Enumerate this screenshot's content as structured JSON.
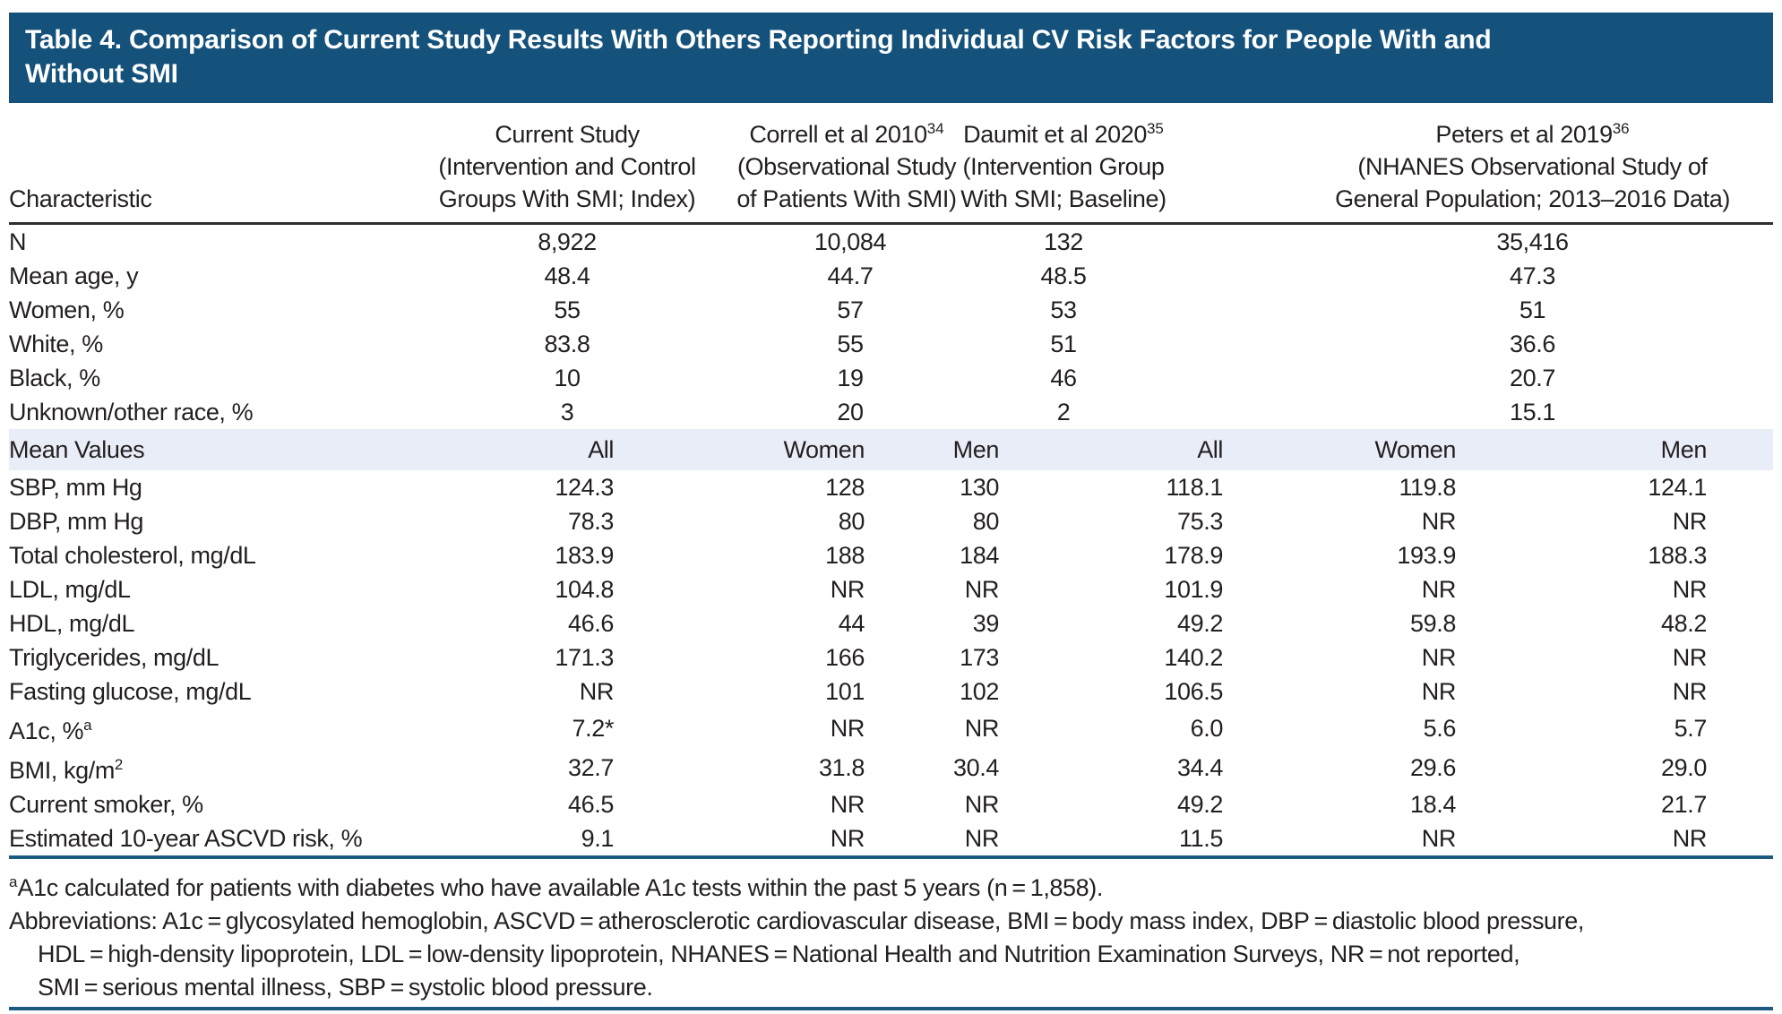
{
  "colors": {
    "title_bar": "#15527B",
    "title_text": "#FFFFFF",
    "text": "#231F20",
    "band": "#E9EDF7",
    "rule_dark": "#2F2F2F",
    "rule_blue": "#1D5A80"
  },
  "title_lines": [
    "Table 4. Comparison of Current Study Results With Others Reporting Individual CV Risk Factors for People With and",
    "Without SMI"
  ],
  "col_headers": {
    "characteristic": "Characteristic",
    "groups": [
      {
        "name": "Current Study",
        "ref": "",
        "desc": [
          "(Intervention and Control",
          "Groups With SMI; Index)"
        ]
      },
      {
        "name": "Correll et al 2010",
        "ref": "34",
        "desc": [
          "(Observational Study",
          "of Patients With SMI)"
        ]
      },
      {
        "name": "Daumit et al 2020",
        "ref": "35",
        "desc": [
          "(Intervention Group",
          "With SMI; Baseline)"
        ]
      },
      {
        "name": "Peters et al 2019",
        "ref": "36",
        "desc": [
          "(NHANES Observational Study of",
          "General Population; 2013–2016 Data)"
        ]
      }
    ]
  },
  "demographics": {
    "rows": [
      {
        "label": "N",
        "values": [
          "8,922",
          "10,084",
          "132",
          "35,416"
        ]
      },
      {
        "label": "Mean age, y",
        "values": [
          "48.4",
          "44.7",
          "48.5",
          "47.3"
        ]
      },
      {
        "label": "Women, %",
        "values": [
          "55",
          "57",
          "53",
          "51"
        ]
      },
      {
        "label": "White, %",
        "values": [
          "83.8",
          "55",
          "51",
          "36.6"
        ]
      },
      {
        "label": "Black, %",
        "values": [
          "10",
          "19",
          "46",
          "20.7"
        ]
      },
      {
        "label": "Unknown/other race, %",
        "values": [
          "3",
          "20",
          "2",
          "15.1"
        ]
      }
    ]
  },
  "mean_values": {
    "section_label": "Mean Values",
    "subheaders": [
      "All",
      "Women",
      "Men",
      "All",
      "Women",
      "Men"
    ],
    "rows": [
      {
        "label": "SBP, mm Hg",
        "values": [
          "124.3",
          "128",
          "130",
          "118.1",
          "119.8",
          "124.1"
        ]
      },
      {
        "label": "DBP, mm Hg",
        "values": [
          "78.3",
          "80",
          "80",
          "75.3",
          "NR",
          "NR"
        ]
      },
      {
        "label": "Total cholesterol, mg/dL",
        "values": [
          "183.9",
          "188",
          "184",
          "178.9",
          "193.9",
          "188.3"
        ]
      },
      {
        "label": "LDL, mg/dL",
        "values": [
          "104.8",
          "NR",
          "NR",
          "101.9",
          "NR",
          "NR"
        ]
      },
      {
        "label": "HDL, mg/dL",
        "values": [
          "46.6",
          "44",
          "39",
          "49.2",
          "59.8",
          "48.2"
        ]
      },
      {
        "label": "Triglycerides, mg/dL",
        "values": [
          "171.3",
          "166",
          "173",
          "140.2",
          "NR",
          "NR"
        ]
      },
      {
        "label": "Fasting glucose, mg/dL",
        "values": [
          "NR",
          "101",
          "102",
          "106.5",
          "NR",
          "NR"
        ]
      },
      {
        "label": "A1c, %",
        "sup": "a",
        "values": [
          "7.2*",
          "NR",
          "NR",
          "6.0",
          "5.6",
          "5.7"
        ]
      },
      {
        "label": "BMI, kg/m",
        "sup": "2",
        "values": [
          "32.7",
          "31.8",
          "30.4",
          "34.4",
          "29.6",
          "29.0"
        ]
      },
      {
        "label": "Current smoker, %",
        "values": [
          "46.5",
          "NR",
          "NR",
          "49.2",
          "18.4",
          "21.7"
        ]
      },
      {
        "label": "Estimated 10-year ASCVD risk, %",
        "values": [
          "9.1",
          "NR",
          "NR",
          "11.5",
          "NR",
          "NR"
        ]
      }
    ]
  },
  "footnotes": {
    "note_a_sup": "a",
    "note_a": "A1c calculated for patients with diabetes who have available A1c tests within the past 5 years (n = 1,858).",
    "abbrev_lines": [
      "Abbreviations: A1c = glycosylated hemoglobin, ASCVD = atherosclerotic cardiovascular disease, BMI = body mass index, DBP = diastolic blood pressure,",
      "HDL = high-density lipoprotein, LDL = low-density lipoprotein, NHANES = National Health and Nutrition Examination Surveys, NR = not reported,",
      "SMI = serious mental illness, SBP = systolic blood pressure."
    ]
  }
}
